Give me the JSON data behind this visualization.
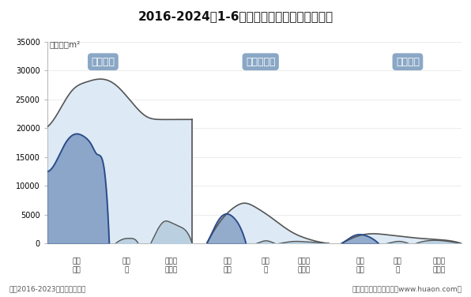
{
  "title": "2016-2024年1-6月贵州省房地产施工面积情况",
  "unit_label": "单位：万m²",
  "note": "注：2016-2023年为全年度数据",
  "credit": "制图：华经产业研究院（www.huaon.com）",
  "ylim": [
    0,
    35000
  ],
  "yticks": [
    0,
    5000,
    10000,
    15000,
    20000,
    25000,
    30000,
    35000
  ],
  "background_color": "#ffffff",
  "label_box_color": "#7a9bbf",
  "fill_light": "#ddeaf5",
  "fill_dark": "#b5cde3",
  "blue_fill": "#4a6fa5",
  "blue_fill_light": "#7a9fc8",
  "line_color": "#555555",
  "blue_line_color": "#2a4a8a",
  "group1_label": "施工面积",
  "group2_label": "新开工面积",
  "group3_label": "竣工面积",
  "sublabels": [
    "商品\n住宅",
    "办公\n楼",
    "商业营\n业用房"
  ],
  "xlim": [
    0,
    10
  ]
}
